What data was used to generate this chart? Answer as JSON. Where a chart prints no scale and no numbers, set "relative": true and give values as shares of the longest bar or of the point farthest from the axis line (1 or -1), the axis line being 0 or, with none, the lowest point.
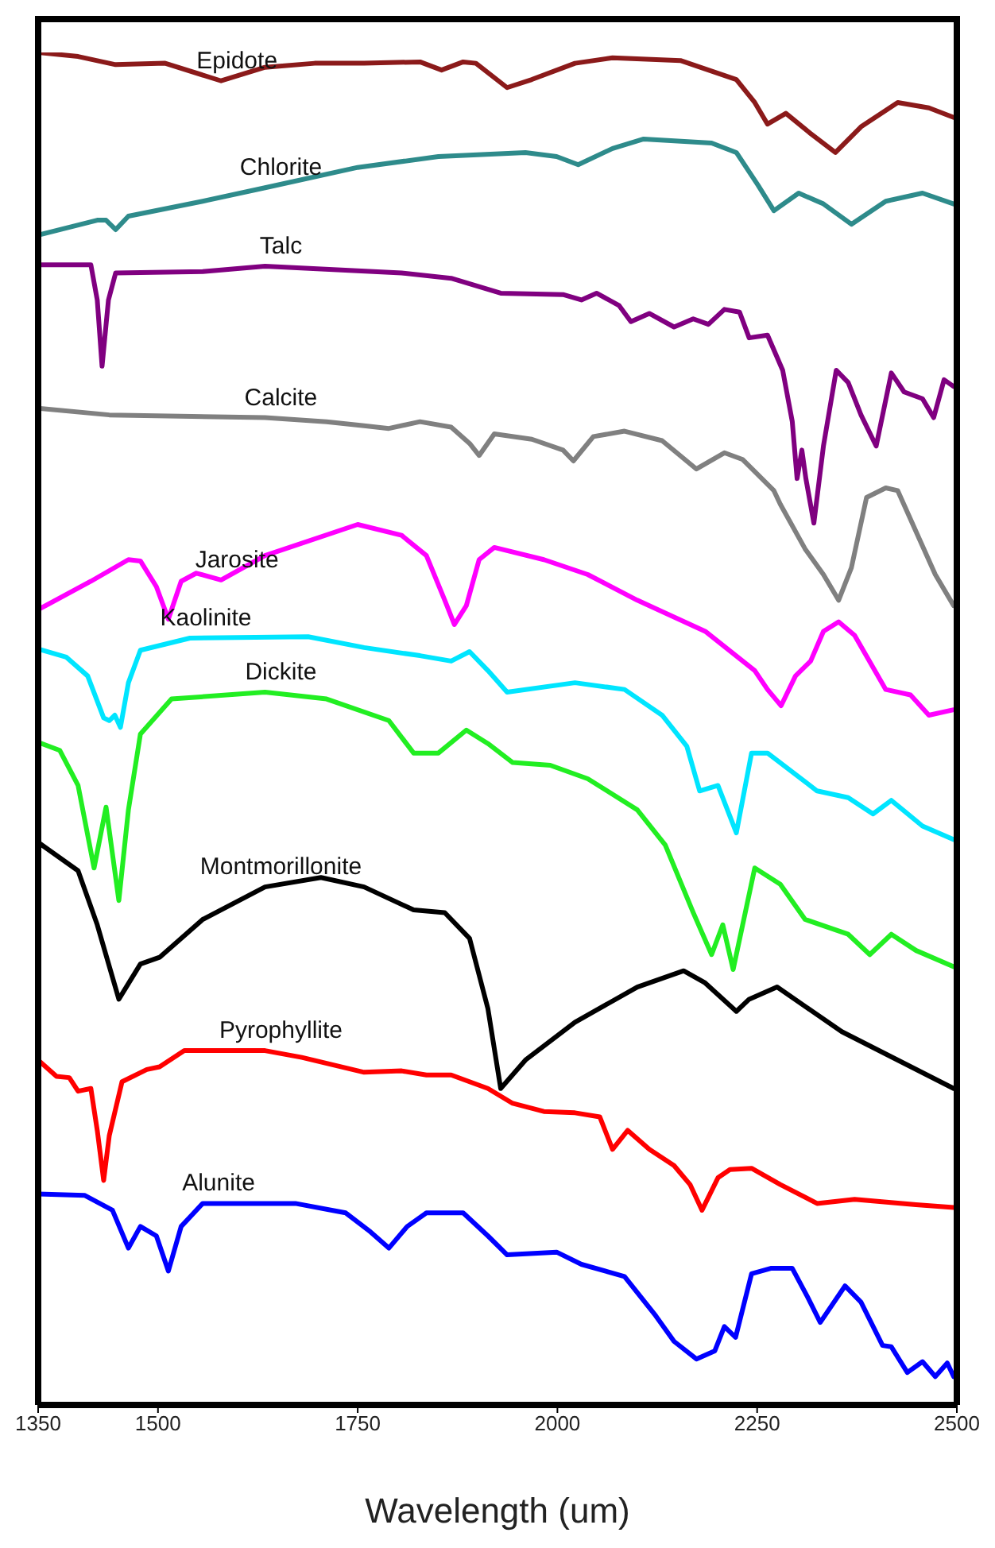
{
  "chart_data": {
    "type": "line",
    "xlabel": "Wavelength (um)",
    "xlim": [
      1350,
      2500
    ],
    "xticks": [
      1350,
      1500,
      1750,
      2000,
      2250,
      2500
    ],
    "relative": true,
    "marker": "none",
    "series": [
      {
        "name": "Epidote",
        "color": "#8b1a1a",
        "x": [
          1350,
          1400,
          1447,
          1509,
          1579,
          1634,
          1696,
          1758,
          1828,
          1855,
          1882,
          1898,
          1937,
          1968,
          2022,
          2069,
          2154,
          2224,
          2247,
          2263,
          2286,
          2317,
          2348,
          2380,
          2426,
          2465,
          2496
        ],
        "values": [
          1,
          0.997,
          0.991,
          0.992,
          0.979,
          0.989,
          0.992,
          0.992,
          0.993,
          0.987,
          0.993,
          0.992,
          0.974,
          0.98,
          0.992,
          0.996,
          0.994,
          0.98,
          0.963,
          0.947,
          0.955,
          0.94,
          0.926,
          0.945,
          0.963,
          0.959,
          0.952
        ]
      },
      {
        "name": "Chlorite",
        "color": "#2e8b8b",
        "x": [
          1350,
          1424,
          1435,
          1447,
          1463,
          1556,
          1634,
          1750,
          1851,
          1960,
          1999,
          2026,
          2069,
          2108,
          2193,
          2224,
          2251,
          2271,
          2302,
          2333,
          2368,
          2411,
          2457,
          2496
        ],
        "values": [
          0.865,
          0.876,
          0.876,
          0.869,
          0.879,
          0.89,
          0.9,
          0.915,
          0.923,
          0.926,
          0.923,
          0.917,
          0.929,
          0.936,
          0.933,
          0.926,
          0.902,
          0.883,
          0.896,
          0.888,
          0.873,
          0.89,
          0.896,
          0.888
        ]
      },
      {
        "name": "Talc",
        "color": "#800080",
        "x": [
          1350,
          1416,
          1424,
          1430,
          1438,
          1447,
          1556,
          1634,
          1805,
          1867,
          1929,
          2007,
          2030,
          2049,
          2077,
          2092,
          2115,
          2146,
          2170,
          2189,
          2209,
          2228,
          2240,
          2263,
          2282,
          2294,
          2300,
          2306,
          2311,
          2321,
          2333,
          2349,
          2364,
          2380,
          2399,
          2418,
          2434,
          2457,
          2471,
          2484,
          2496
        ],
        "values": [
          0.843,
          0.843,
          0.817,
          0.768,
          0.817,
          0.837,
          0.838,
          0.842,
          0.837,
          0.833,
          0.822,
          0.821,
          0.817,
          0.822,
          0.813,
          0.801,
          0.807,
          0.797,
          0.803,
          0.799,
          0.81,
          0.808,
          0.789,
          0.791,
          0.765,
          0.727,
          0.685,
          0.706,
          0.685,
          0.652,
          0.709,
          0.765,
          0.756,
          0.732,
          0.709,
          0.763,
          0.749,
          0.744,
          0.73,
          0.758,
          0.753
        ]
      },
      {
        "name": "Calcite",
        "color": "#808080",
        "x": [
          1350,
          1439,
          1634,
          1711,
          1758,
          1789,
          1828,
          1867,
          1890,
          1902,
          1921,
          1968,
          2007,
          2020,
          2045,
          2084,
          2131,
          2174,
          2209,
          2232,
          2271,
          2279,
          2310,
          2333,
          2352,
          2368,
          2387,
          2411,
          2426,
          2473,
          2496
        ],
        "values": [
          0.737,
          0.732,
          0.73,
          0.727,
          0.724,
          0.722,
          0.727,
          0.723,
          0.711,
          0.702,
          0.718,
          0.714,
          0.706,
          0.698,
          0.716,
          0.72,
          0.713,
          0.692,
          0.704,
          0.699,
          0.676,
          0.666,
          0.633,
          0.614,
          0.595,
          0.619,
          0.671,
          0.678,
          0.676,
          0.614,
          0.591
        ]
      },
      {
        "name": "Jarosite",
        "color": "#ff00ff",
        "x": [
          1350,
          1416,
          1463,
          1478,
          1498,
          1513,
          1529,
          1548,
          1579,
          1634,
          1750,
          1805,
          1836,
          1859,
          1871,
          1886,
          1902,
          1921,
          1983,
          2038,
          2100,
          2185,
          2247,
          2263,
          2280,
          2298,
          2317,
          2333,
          2352,
          2372,
          2411,
          2442,
          2465,
          2496
        ],
        "values": [
          0.588,
          0.609,
          0.625,
          0.624,
          0.605,
          0.581,
          0.609,
          0.615,
          0.61,
          0.628,
          0.651,
          0.643,
          0.628,
          0.595,
          0.577,
          0.591,
          0.625,
          0.634,
          0.625,
          0.614,
          0.595,
          0.572,
          0.543,
          0.529,
          0.517,
          0.539,
          0.55,
          0.572,
          0.579,
          0.569,
          0.529,
          0.525,
          0.51,
          0.514
        ]
      },
      {
        "name": "Kaolinite",
        "color": "#00e5ff",
        "x": [
          1350,
          1385,
          1412,
          1432,
          1439,
          1446,
          1453,
          1463,
          1478,
          1540,
          1688,
          1758,
          1828,
          1867,
          1890,
          1913,
          1937,
          2022,
          2084,
          2131,
          2162,
          2178,
          2201,
          2224,
          2243,
          2263,
          2325,
          2364,
          2395,
          2418,
          2457,
          2496
        ],
        "values": [
          0.559,
          0.553,
          0.539,
          0.508,
          0.506,
          0.51,
          0.501,
          0.534,
          0.558,
          0.567,
          0.568,
          0.56,
          0.554,
          0.55,
          0.557,
          0.543,
          0.527,
          0.534,
          0.529,
          0.51,
          0.487,
          0.454,
          0.458,
          0.423,
          0.482,
          0.482,
          0.454,
          0.449,
          0.437,
          0.447,
          0.428,
          0.418
        ]
      },
      {
        "name": "Dickite",
        "color": "#22ee22",
        "x": [
          1350,
          1377,
          1400,
          1420,
          1435,
          1451,
          1463,
          1478,
          1517,
          1634,
          1711,
          1789,
          1820,
          1851,
          1886,
          1913,
          1944,
          1991,
          2038,
          2100,
          2135,
          2170,
          2193,
          2207,
          2220,
          2247,
          2279,
          2310,
          2364,
          2391,
          2418,
          2449,
          2496
        ],
        "values": [
          0.49,
          0.484,
          0.458,
          0.397,
          0.442,
          0.373,
          0.44,
          0.496,
          0.522,
          0.527,
          0.522,
          0.506,
          0.482,
          0.482,
          0.499,
          0.489,
          0.475,
          0.473,
          0.463,
          0.44,
          0.414,
          0.364,
          0.333,
          0.355,
          0.322,
          0.397,
          0.385,
          0.359,
          0.348,
          0.333,
          0.348,
          0.336,
          0.324
        ]
      },
      {
        "name": "Montmorillonite",
        "color": "#000000",
        "x": [
          1350,
          1400,
          1424,
          1451,
          1478,
          1502,
          1556,
          1634,
          1704,
          1758,
          1820,
          1859,
          1890,
          1913,
          1929,
          1960,
          2022,
          2100,
          2158,
          2185,
          2224,
          2240,
          2275,
          2356,
          2496
        ],
        "values": [
          0.416,
          0.395,
          0.355,
          0.3,
          0.326,
          0.331,
          0.359,
          0.383,
          0.39,
          0.383,
          0.366,
          0.364,
          0.345,
          0.293,
          0.234,
          0.255,
          0.283,
          0.309,
          0.321,
          0.312,
          0.291,
          0.3,
          0.309,
          0.276,
          0.234
        ]
      },
      {
        "name": "Pyrophyllite",
        "color": "#ff0000",
        "x": [
          1350,
          1373,
          1389,
          1400,
          1416,
          1424,
          1432,
          1439,
          1455,
          1486,
          1502,
          1533,
          1634,
          1680,
          1758,
          1805,
          1836,
          1867,
          1913,
          1944,
          1983,
          2022,
          2053,
          2069,
          2088,
          2115,
          2146,
          2166,
          2181,
          2201,
          2216,
          2243,
          2279,
          2325,
          2372,
          2449,
          2496
        ],
        "values": [
          0.255,
          0.243,
          0.242,
          0.232,
          0.234,
          0.203,
          0.166,
          0.199,
          0.239,
          0.248,
          0.25,
          0.262,
          0.262,
          0.257,
          0.246,
          0.247,
          0.244,
          0.244,
          0.234,
          0.223,
          0.217,
          0.216,
          0.213,
          0.189,
          0.203,
          0.189,
          0.177,
          0.163,
          0.144,
          0.168,
          0.174,
          0.175,
          0.163,
          0.149,
          0.152,
          0.148,
          0.146
        ]
      },
      {
        "name": "Alunite",
        "color": "#0000ff",
        "x": [
          1350,
          1408,
          1443,
          1463,
          1478,
          1498,
          1513,
          1529,
          1556,
          1672,
          1735,
          1766,
          1789,
          1812,
          1836,
          1882,
          1913,
          1937,
          1999,
          2030,
          2084,
          2123,
          2146,
          2174,
          2197,
          2209,
          2223,
          2243,
          2267,
          2294,
          2313,
          2329,
          2360,
          2380,
          2407,
          2418,
          2438,
          2457,
          2473,
          2488,
          2496
        ],
        "values": [
          0.156,
          0.155,
          0.144,
          0.116,
          0.132,
          0.125,
          0.099,
          0.132,
          0.149,
          0.149,
          0.142,
          0.128,
          0.116,
          0.132,
          0.142,
          0.142,
          0.125,
          0.111,
          0.113,
          0.104,
          0.095,
          0.066,
          0.047,
          0.034,
          0.04,
          0.058,
          0.05,
          0.097,
          0.101,
          0.101,
          0.08,
          0.061,
          0.088,
          0.076,
          0.044,
          0.043,
          0.024,
          0.032,
          0.021,
          0.031,
          0.021
        ]
      }
    ]
  }
}
